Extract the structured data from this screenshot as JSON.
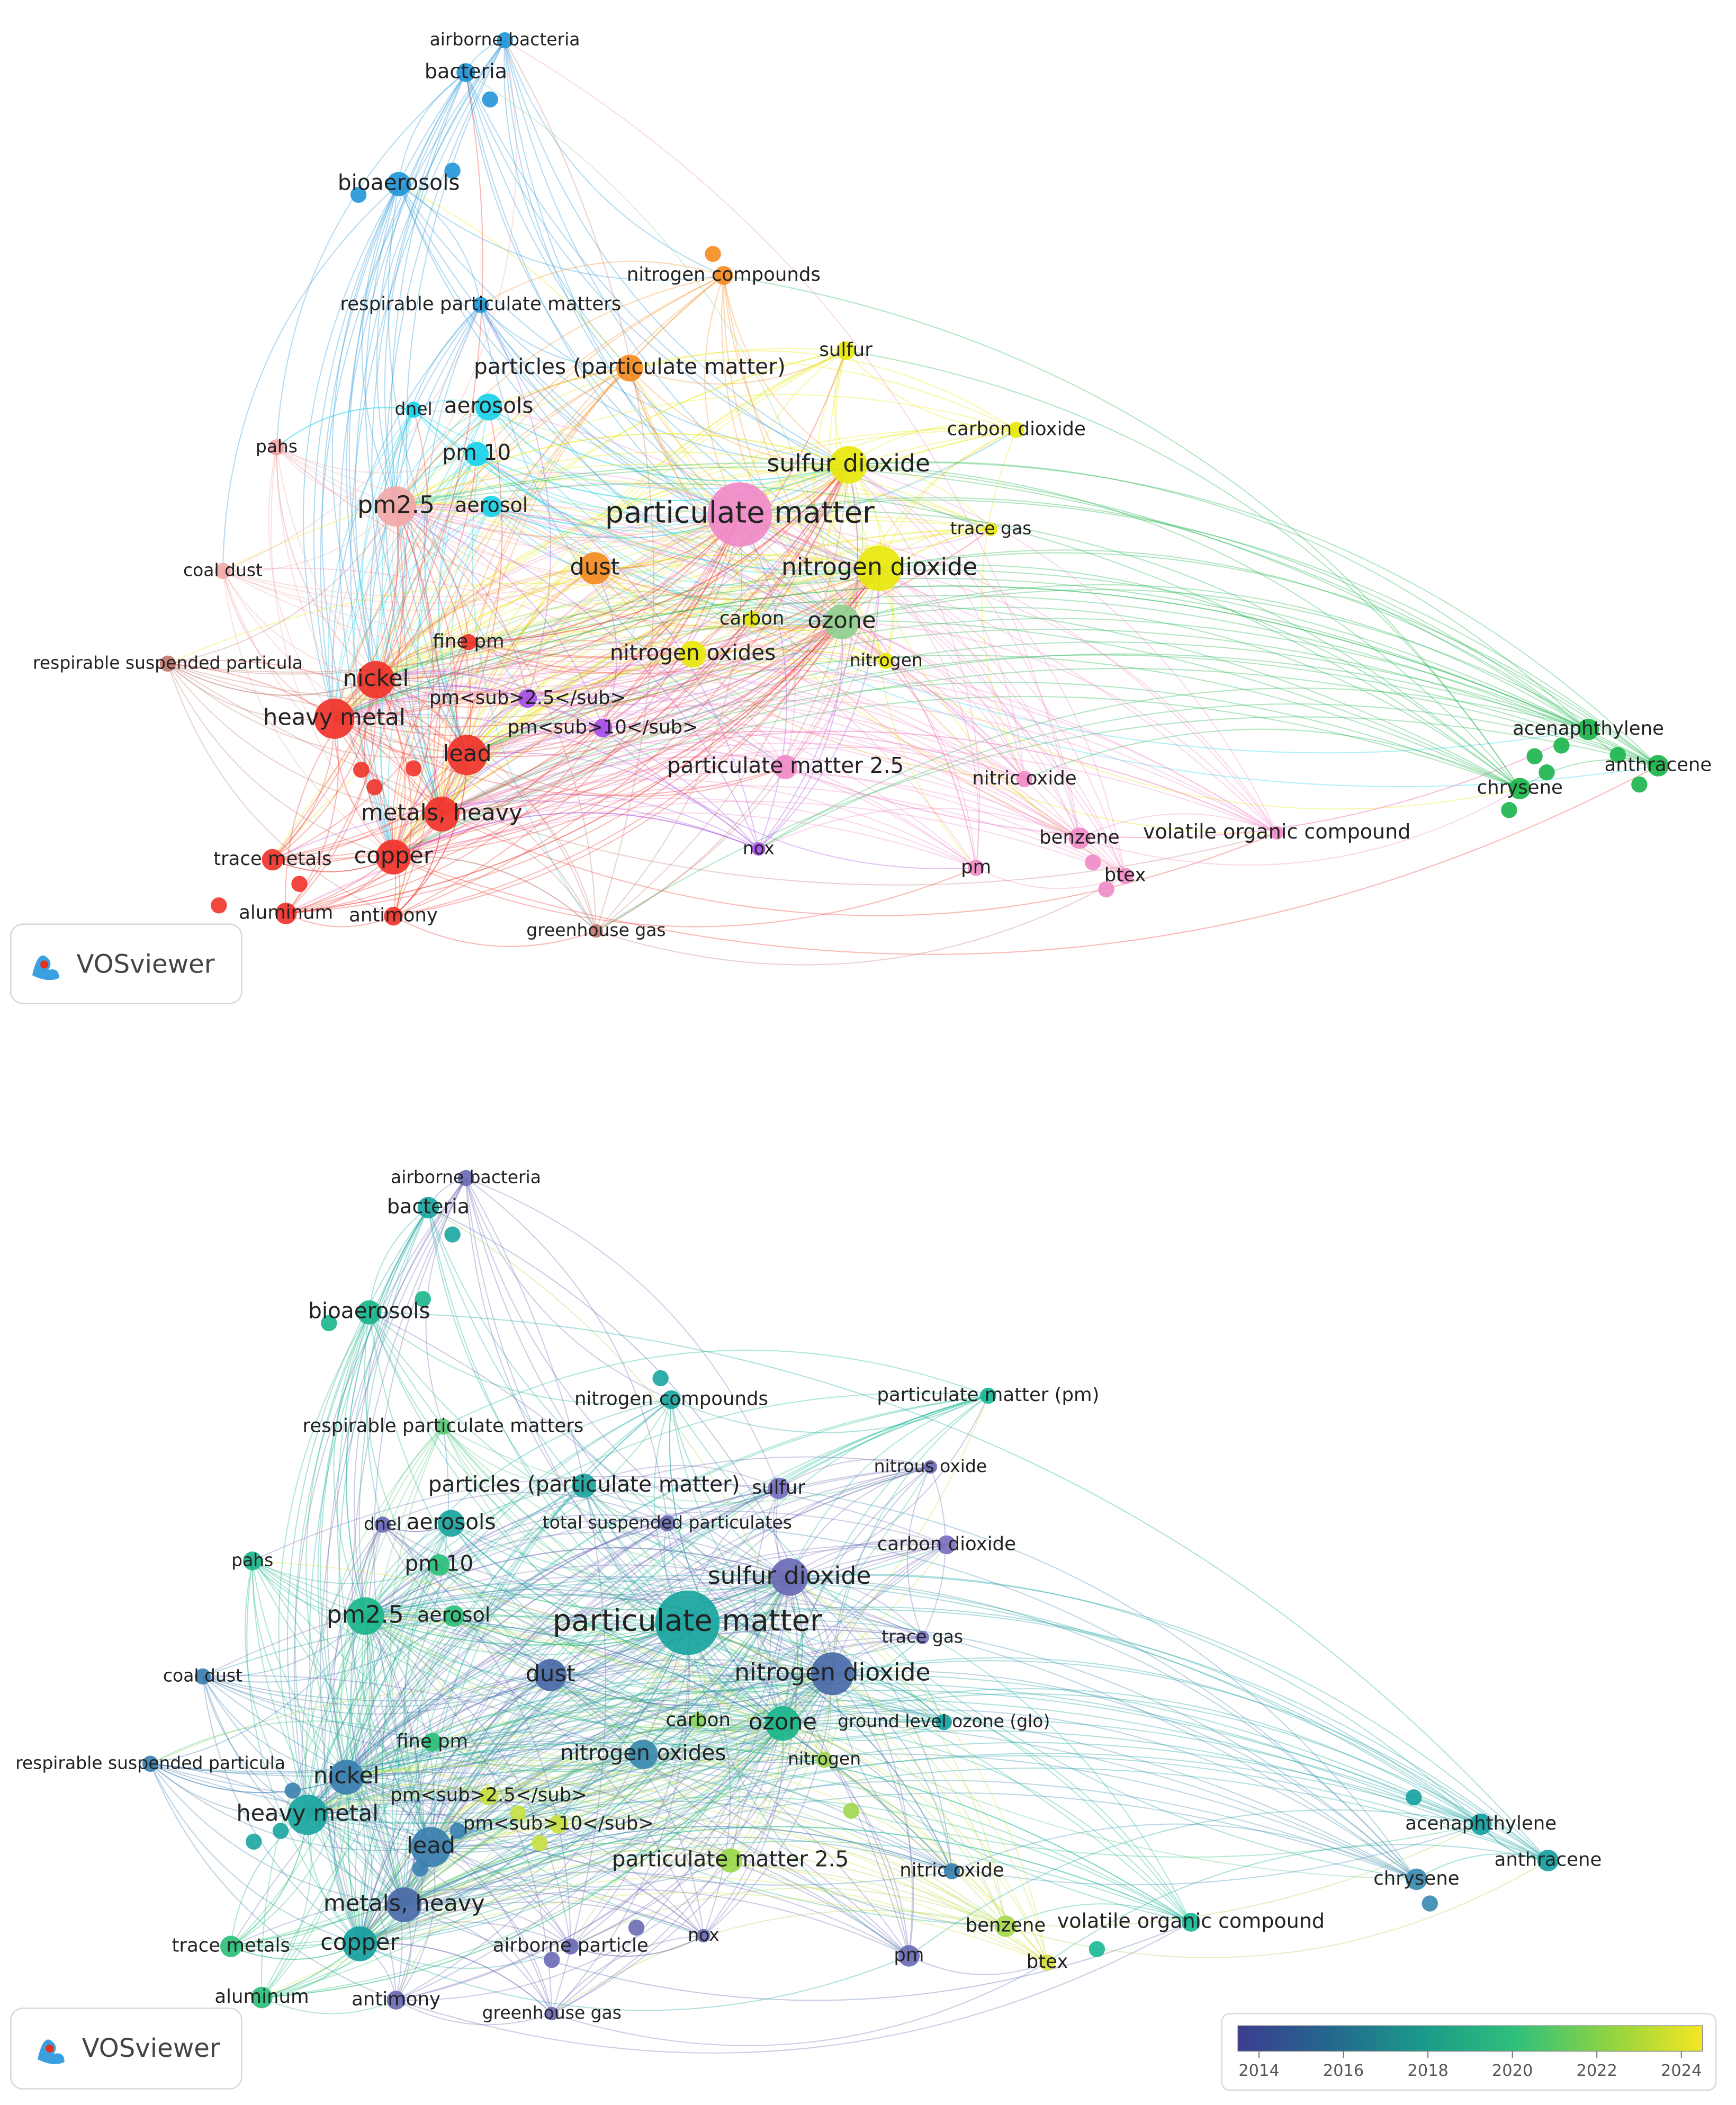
{
  "maps": [
    {
      "nodes": [
        {
          "label": "airborne bacteria",
          "color": "#2196d8"
        },
        {
          "label": "bacteria",
          "color": "#2196d8"
        },
        {
          "label": "bioaerosols",
          "color": "#2196d8"
        },
        {
          "label": "nitrogen compounds",
          "color": "#f58b1f"
        },
        {
          "label": "respirable particulate matters",
          "color": "#2196d8"
        },
        {
          "label": "particles (particulate matter)",
          "color": "#f58b1f"
        },
        {
          "label": "sulfur",
          "color": "#e8e80c"
        },
        {
          "label": "carbon dioxide",
          "color": "#e8e80c"
        },
        {
          "label": "aerosols",
          "color": "#1ad3e8"
        },
        {
          "label": "dnel",
          "color": "#1ad3e8"
        },
        {
          "label": "pahs",
          "color": "#f2a8a8"
        },
        {
          "label": "pm 10",
          "color": "#1ad3e8"
        },
        {
          "label": "sulfur dioxide",
          "color": "#e8e80c"
        },
        {
          "label": "pm2.5",
          "color": "#f2a8a8"
        },
        {
          "label": "aerosol",
          "color": "#1ad3e8"
        },
        {
          "label": "particulate matter",
          "color": "#f08ac8"
        },
        {
          "label": "trace gas",
          "color": "#e8e80c"
        },
        {
          "label": "coal dust",
          "color": "#f2a8a8"
        },
        {
          "label": "dust",
          "color": "#f58b1f"
        },
        {
          "label": "nitrogen dioxide",
          "color": "#e8e80c"
        },
        {
          "label": "carbon",
          "color": "#e8e80c"
        },
        {
          "label": "ozone",
          "color": "#8fd08f"
        },
        {
          "label": "fine pm",
          "color": "#f0332a"
        },
        {
          "label": "nitrogen oxides",
          "color": "#e8e80c"
        },
        {
          "label": "nitrogen",
          "color": "#e8e80c"
        },
        {
          "label": "respirable suspended particula",
          "color": "#c07a70"
        },
        {
          "label": "nickel",
          "color": "#f0332a"
        },
        {
          "label": "pm<sub>2.5</sub>",
          "color": "#a64de8"
        },
        {
          "label": "heavy metal",
          "color": "#f0332a"
        },
        {
          "label": "pm<sub>10</sub>",
          "color": "#a64de8"
        },
        {
          "label": "lead",
          "color": "#f0332a"
        },
        {
          "label": "particulate matter 2.5",
          "color": "#f08ac8"
        },
        {
          "label": "acenaphthylene",
          "color": "#1ab54a"
        },
        {
          "label": "anthracene",
          "color": "#1ab54a"
        },
        {
          "label": "chrysene",
          "color": "#1ab54a"
        },
        {
          "label": "nitric oxide",
          "color": "#f08ac8"
        },
        {
          "label": "metals, heavy",
          "color": "#f0332a"
        },
        {
          "label": "volatile organic compound",
          "color": "#f08ac8"
        },
        {
          "label": "benzene",
          "color": "#f08ac8"
        },
        {
          "label": "nox",
          "color": "#a64de8"
        },
        {
          "label": "trace metals",
          "color": "#f0332a"
        },
        {
          "label": "copper",
          "color": "#f0332a"
        },
        {
          "label": "pm",
          "color": "#f08ac8"
        },
        {
          "label": "btex",
          "color": "#f08ac8"
        },
        {
          "label": "aluminum",
          "color": "#f0332a"
        },
        {
          "label": "antimony",
          "color": "#f0332a"
        },
        {
          "label": "greenhouse gas",
          "color": "#c07a70"
        }
      ],
      "logo": "VOSviewer"
    },
    {
      "nodes": [
        {
          "label": "airborne bacteria",
          "color": "#6a6ab5"
        },
        {
          "label": "bacteria",
          "color": "#1aa5a0"
        },
        {
          "label": "bioaerosols",
          "color": "#1ab58a"
        },
        {
          "label": "nitrogen compounds",
          "color": "#1aa5a0"
        },
        {
          "label": "particulate matter (pm)",
          "color": "#16b896"
        },
        {
          "label": "respirable particulate matters",
          "color": "#5ac87a"
        },
        {
          "label": "nitrous oxide",
          "color": "#6a6ab5"
        },
        {
          "label": "sulfur",
          "color": "#7a70c0"
        },
        {
          "label": "particles (particulate matter)",
          "color": "#1aa5a0"
        },
        {
          "label": "total suspended particulates",
          "color": "#6a6ab5"
        },
        {
          "label": "dnel",
          "color": "#6a6ab5"
        },
        {
          "label": "aerosols",
          "color": "#1aa5a0"
        },
        {
          "label": "carbon dioxide",
          "color": "#7a70c0"
        },
        {
          "label": "pahs",
          "color": "#1ab58a"
        },
        {
          "label": "pm 10",
          "color": "#2cc07a"
        },
        {
          "label": "sulfur dioxide",
          "color": "#6a6ab5"
        },
        {
          "label": "pm2.5",
          "color": "#1ab58a"
        },
        {
          "label": "aerosol",
          "color": "#2cc07a"
        },
        {
          "label": "particulate matter",
          "color": "#1aa5a0"
        },
        {
          "label": "trace gas",
          "color": "#7a70c0"
        },
        {
          "label": "coal dust",
          "color": "#3a7fb0"
        },
        {
          "label": "dust",
          "color": "#4a6aa8"
        },
        {
          "label": "nitrogen dioxide",
          "color": "#4a6aa8"
        },
        {
          "label": "carbon",
          "color": "#8ad860"
        },
        {
          "label": "ozone",
          "color": "#1ab58a"
        },
        {
          "label": "ground level ozone (glo)",
          "color": "#16a0a0"
        },
        {
          "label": "fine pm",
          "color": "#2cc07a"
        },
        {
          "label": "nitrogen oxides",
          "color": "#3a8ab0"
        },
        {
          "label": "nitrogen",
          "color": "#a0d850"
        },
        {
          "label": "respirable suspended particula",
          "color": "#3a7fb0"
        },
        {
          "label": "nickel",
          "color": "#3a7fb0"
        },
        {
          "label": "pm<sub>2.5</sub>",
          "color": "#c8e040"
        },
        {
          "label": "heavy metal",
          "color": "#1aa5a0"
        },
        {
          "label": "pm<sub>10</sub>",
          "color": "#c8e040"
        },
        {
          "label": "lead",
          "color": "#3a7fb0"
        },
        {
          "label": "particulate matter 2.5",
          "color": "#9ad84a"
        },
        {
          "label": "acenaphthylene",
          "color": "#16a0a0"
        },
        {
          "label": "anthracene",
          "color": "#16a0a0"
        },
        {
          "label": "chrysene",
          "color": "#3a8ab0"
        },
        {
          "label": "nitric oxide",
          "color": "#3a7fb0"
        },
        {
          "label": "metals, heavy",
          "color": "#4a6aa8"
        },
        {
          "label": "volatile organic compound",
          "color": "#16b896"
        },
        {
          "label": "benzene",
          "color": "#a8d850"
        },
        {
          "label": "airborne particle",
          "color": "#6a6ab5"
        },
        {
          "label": "nox",
          "color": "#6a6ab5"
        },
        {
          "label": "trace metals",
          "color": "#2cc07a"
        },
        {
          "label": "copper",
          "color": "#16a0a0"
        },
        {
          "label": "pm",
          "color": "#6a6ab5"
        },
        {
          "label": "btex",
          "color": "#d8e040"
        },
        {
          "label": "aluminum",
          "color": "#2cc07a"
        },
        {
          "label": "antimony",
          "color": "#6a6ab5"
        },
        {
          "label": "greenhouse gas",
          "color": "#6a6ab5"
        }
      ],
      "logo": "VOSviewer",
      "colorbar": {
        "lim": [
          2013.5,
          2024.5
        ],
        "ticks": [
          2014,
          2016,
          2018,
          2020,
          2022,
          2024
        ],
        "colors": [
          "#3b3d8f",
          "#24688e",
          "#1a9a8a",
          "#2fc07a",
          "#8fd440",
          "#f5e625"
        ]
      }
    }
  ]
}
